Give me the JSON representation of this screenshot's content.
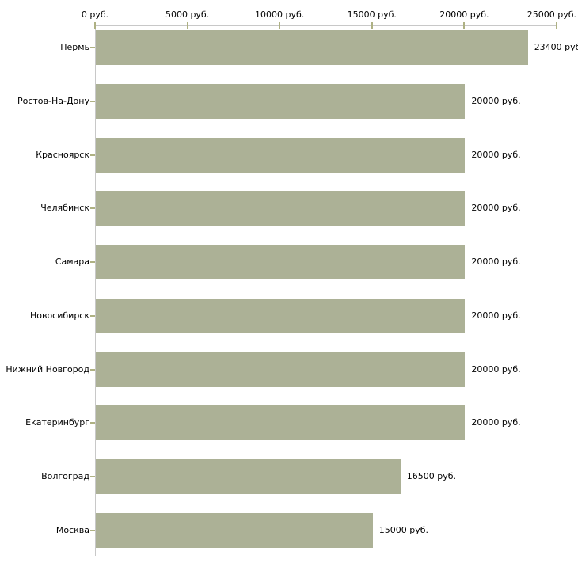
{
  "chart_data": {
    "type": "bar",
    "orientation": "horizontal",
    "title": "",
    "xlabel": "",
    "ylabel": "",
    "unit": "руб.",
    "categories": [
      "Пермь",
      "Ростов-На-Дону",
      "Красноярск",
      "Челябинск",
      "Самара",
      "Новосибирск",
      "Нижний Новгород",
      "Екатеринбург",
      "Волгоград",
      "Москва"
    ],
    "values": [
      23400,
      20000,
      20000,
      20000,
      20000,
      20000,
      20000,
      20000,
      16500,
      15000
    ],
    "value_labels": [
      "23400 руб.",
      "20000 руб.",
      "20000 руб.",
      "20000 руб.",
      "20000 руб.",
      "20000 руб.",
      "20000 руб.",
      "20000 руб.",
      "16500 руб.",
      "15000 руб."
    ],
    "xlim": [
      0,
      25000
    ],
    "x_ticks": [
      0,
      5000,
      10000,
      15000,
      20000,
      25000
    ],
    "x_tick_labels": [
      "0 руб.",
      "5000 руб.",
      "10000 руб.",
      "15000 руб.",
      "20000 руб.",
      "25000 руб."
    ],
    "axis_position": "top",
    "grid": false,
    "legend": null,
    "colors": {
      "bar": "#acb196",
      "axis_line": "#c8c8c8",
      "tick": "#aeb183",
      "text": "#000000",
      "background": "#ffffff"
    }
  }
}
